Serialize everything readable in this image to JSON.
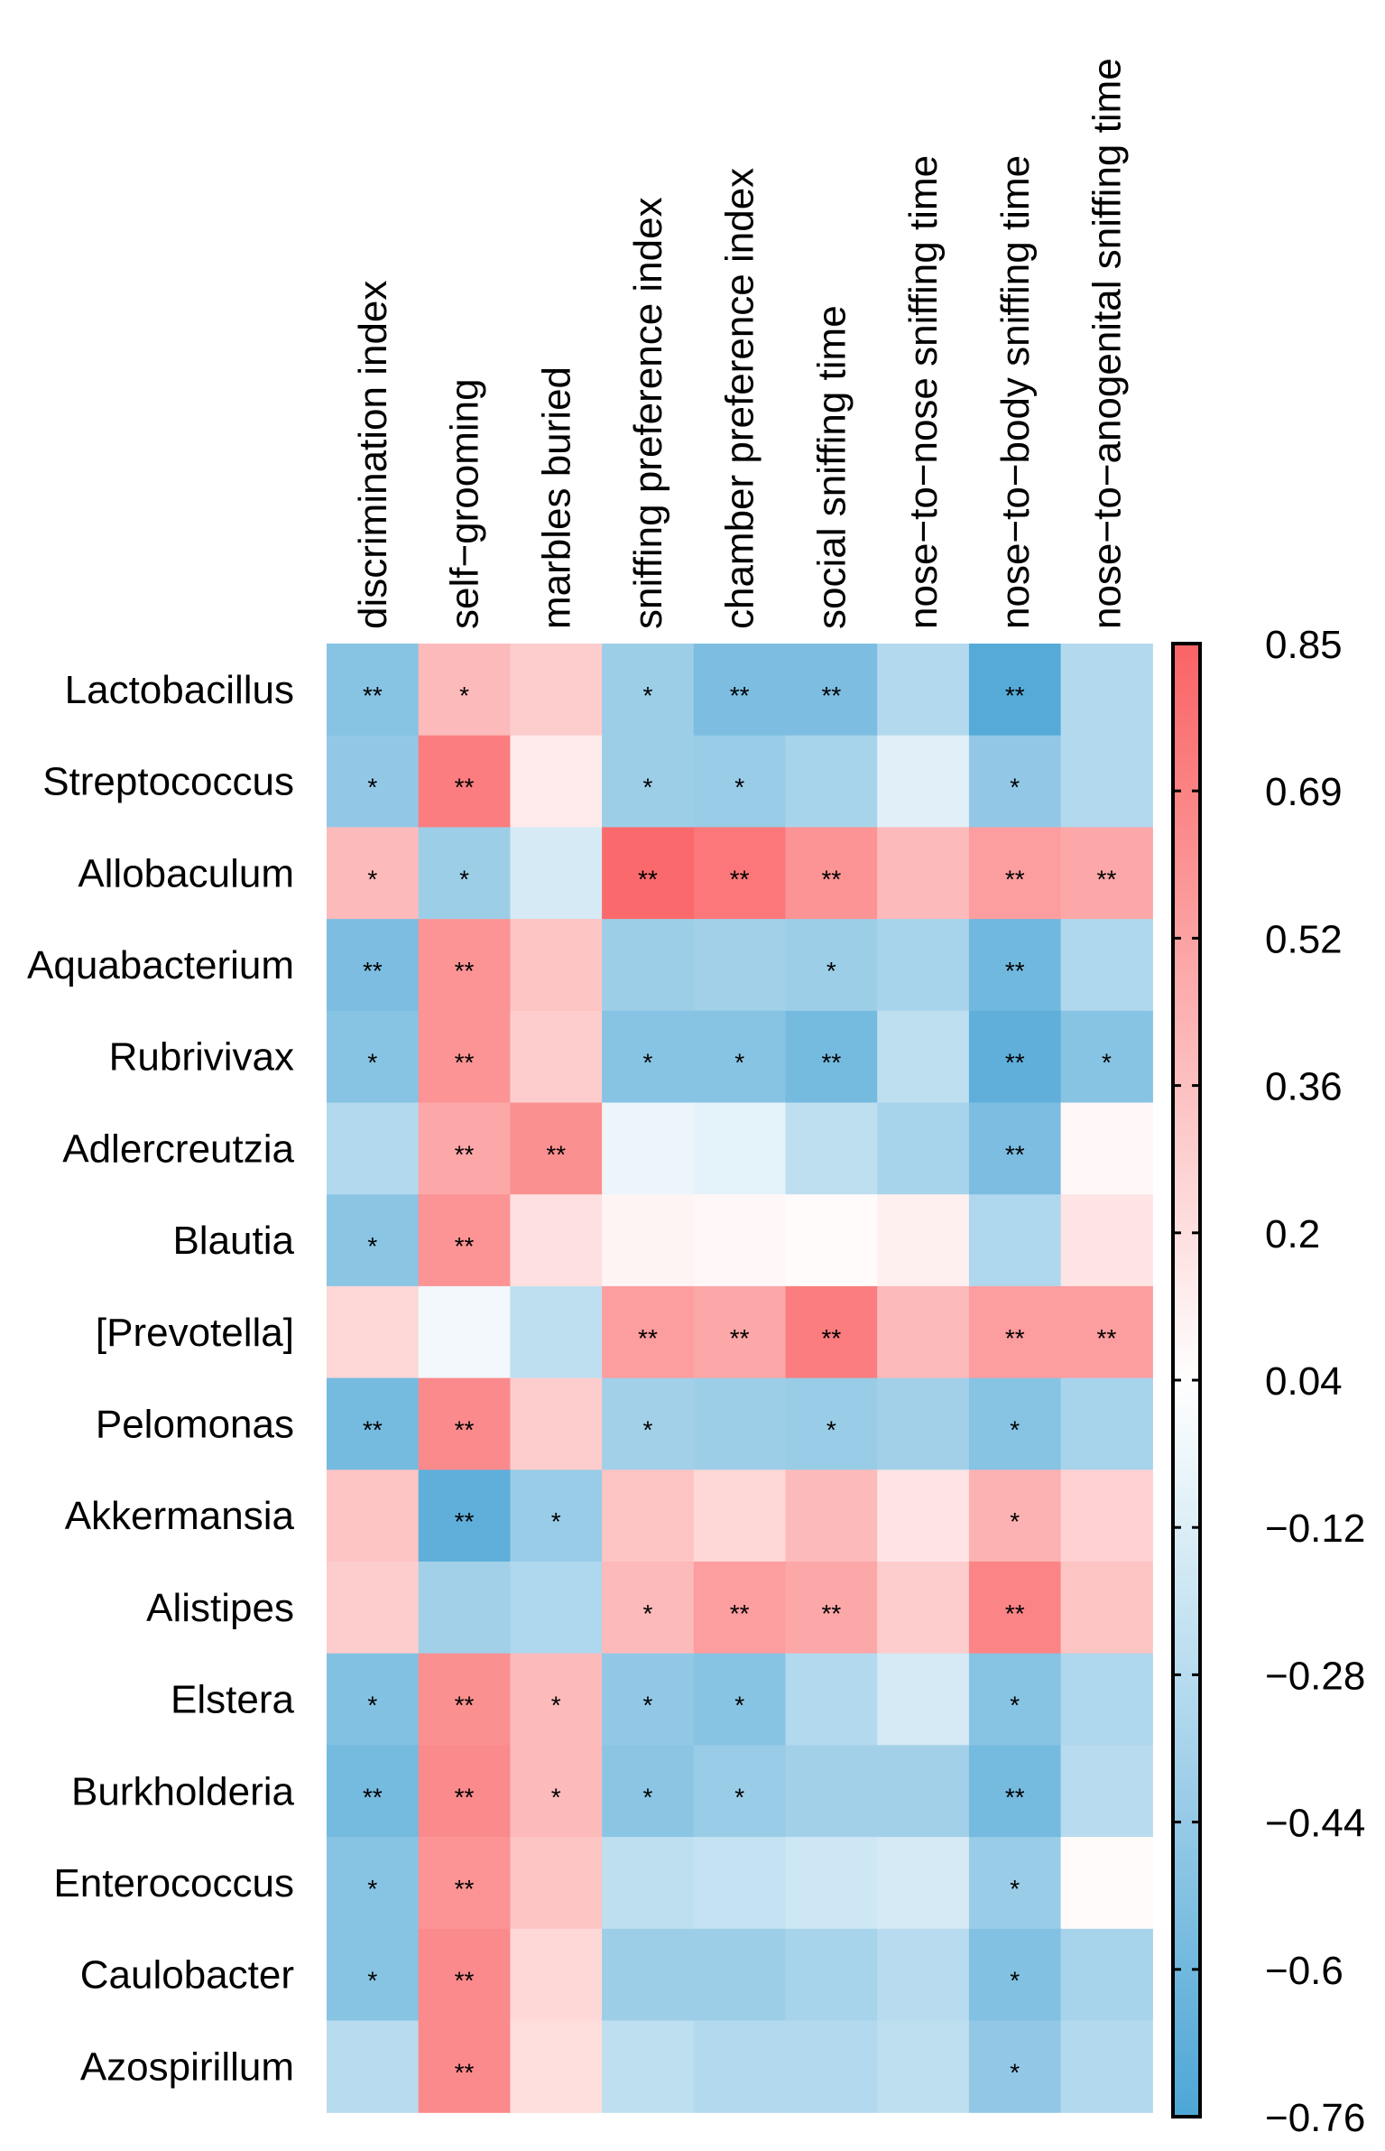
{
  "chart_data": {
    "type": "heatmap",
    "title": "",
    "columns": [
      "discrimination index",
      "self−grooming",
      "marbles buried",
      "sniffing preference index",
      "chamber preference index",
      "social sniffing time",
      "nose−to−nose sniffing time",
      "nose−to−body sniffing time",
      "nose−to−anogenital sniffing time"
    ],
    "rows": [
      "Lactobacillus",
      "Streptococcus",
      "Allobaculum",
      "Aquabacterium",
      "Rubrivivax",
      "Adlercreutzia",
      "Blautia",
      "[Prevotella]",
      "Pelomonas",
      "Akkermansia",
      "Alistipes",
      "Elstera",
      "Burkholderia",
      "Enterococcus",
      "Caulobacter",
      "Azospirillum"
    ],
    "values": [
      [
        -0.5,
        0.4,
        0.3,
        -0.4,
        -0.55,
        -0.55,
        -0.3,
        -0.72,
        -0.3
      ],
      [
        -0.45,
        0.72,
        0.15,
        -0.4,
        -0.42,
        -0.35,
        -0.1,
        -0.45,
        -0.3
      ],
      [
        0.4,
        -0.4,
        -0.15,
        0.82,
        0.75,
        0.6,
        0.4,
        0.55,
        0.5
      ],
      [
        -0.55,
        0.6,
        0.35,
        -0.4,
        -0.38,
        -0.4,
        -0.35,
        -0.6,
        -0.32
      ],
      [
        -0.5,
        0.6,
        0.3,
        -0.5,
        -0.5,
        -0.58,
        -0.25,
        -0.68,
        -0.5
      ],
      [
        -0.3,
        0.5,
        0.62,
        -0.05,
        -0.08,
        -0.25,
        -0.35,
        -0.55,
        0.08
      ],
      [
        -0.48,
        0.6,
        0.2,
        0.1,
        0.08,
        0.06,
        0.12,
        -0.32,
        0.18
      ],
      [
        0.25,
        -0.02,
        -0.25,
        0.55,
        0.5,
        0.72,
        0.4,
        0.55,
        0.55
      ],
      [
        -0.58,
        0.65,
        0.3,
        -0.38,
        -0.4,
        -0.42,
        -0.38,
        -0.5,
        -0.35
      ],
      [
        0.35,
        -0.68,
        -0.42,
        0.35,
        0.25,
        0.4,
        0.18,
        0.45,
        0.28
      ],
      [
        0.3,
        -0.38,
        -0.32,
        0.4,
        0.55,
        0.5,
        0.3,
        0.68,
        0.35
      ],
      [
        -0.52,
        0.62,
        0.4,
        -0.45,
        -0.5,
        -0.3,
        -0.15,
        -0.5,
        -0.32
      ],
      [
        -0.58,
        0.65,
        0.4,
        -0.48,
        -0.42,
        -0.38,
        -0.38,
        -0.58,
        -0.28
      ],
      [
        -0.5,
        0.6,
        0.35,
        -0.25,
        -0.22,
        -0.18,
        -0.15,
        -0.42,
        0.06
      ],
      [
        -0.5,
        0.65,
        0.25,
        -0.4,
        -0.4,
        -0.35,
        -0.28,
        -0.52,
        -0.35
      ],
      [
        -0.28,
        0.65,
        0.22,
        -0.25,
        -0.3,
        -0.3,
        -0.25,
        -0.45,
        -0.3
      ]
    ],
    "significance": [
      [
        "**",
        "*",
        "",
        "*",
        "**",
        "**",
        "",
        "**",
        ""
      ],
      [
        "*",
        "**",
        "",
        "*",
        "*",
        "",
        "",
        "*",
        ""
      ],
      [
        "*",
        "*",
        "",
        "**",
        "**",
        "**",
        "",
        "**",
        "**"
      ],
      [
        "**",
        "**",
        "",
        "",
        "",
        "*",
        "",
        "**",
        ""
      ],
      [
        "*",
        "**",
        "",
        "*",
        "*",
        "**",
        "",
        "**",
        "*"
      ],
      [
        "",
        "**",
        "**",
        "",
        "",
        "",
        "",
        "**",
        ""
      ],
      [
        "*",
        "**",
        "",
        "",
        "",
        "",
        "",
        "",
        ""
      ],
      [
        "",
        "",
        "",
        "**",
        "**",
        "**",
        "",
        "**",
        "**"
      ],
      [
        "**",
        "**",
        "",
        "*",
        "",
        "*",
        "",
        "*",
        ""
      ],
      [
        "",
        "**",
        "*",
        "",
        "",
        "",
        "",
        "*",
        ""
      ],
      [
        "",
        "",
        "",
        "*",
        "**",
        "**",
        "",
        "**",
        ""
      ],
      [
        "*",
        "**",
        "*",
        "*",
        "*",
        "",
        "",
        "*",
        ""
      ],
      [
        "**",
        "**",
        "*",
        "*",
        "*",
        "",
        "",
        "**",
        ""
      ],
      [
        "*",
        "**",
        "",
        "",
        "",
        "",
        "",
        "*",
        ""
      ],
      [
        "*",
        "**",
        "",
        "",
        "",
        "",
        "",
        "*",
        ""
      ],
      [
        "",
        "**",
        "",
        "",
        "",
        "",
        "",
        "*",
        ""
      ]
    ],
    "colorbar": {
      "min": -0.76,
      "max": 0.85,
      "ticks": [
        "0.85",
        "0.69",
        "0.52",
        "0.36",
        "0.2",
        "0.04",
        "−0.12",
        "−0.28",
        "−0.44",
        "−0.6",
        "−0.76"
      ],
      "low_color": "#4da6d6",
      "mid_color": "#ffffff",
      "high_color": "#fa6466"
    }
  }
}
